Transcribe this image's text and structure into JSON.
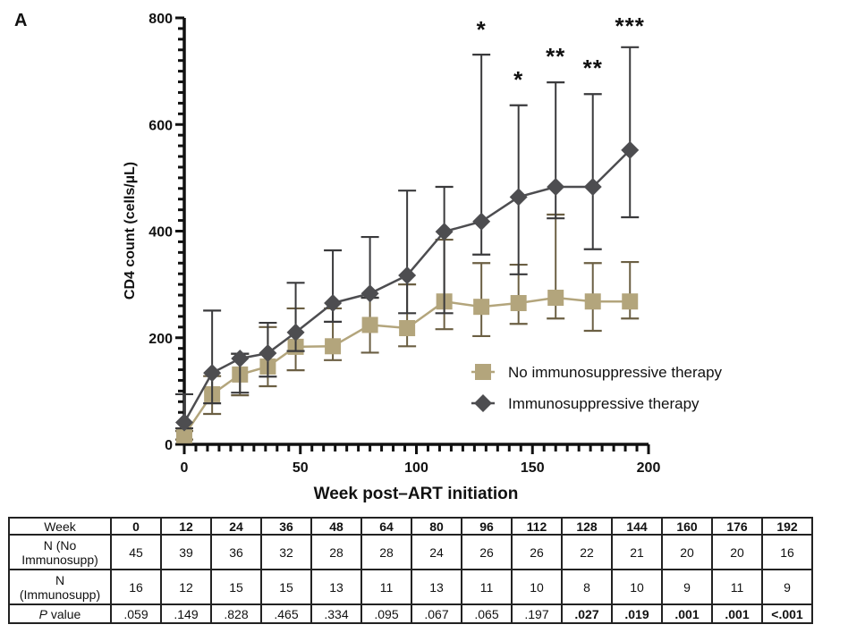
{
  "panel_label": "A",
  "chart_data": {
    "type": "line",
    "title": "",
    "xlabel": "Week post–ART initiation",
    "ylabel": "CD4 count (cells/µL)",
    "xlim": [
      0,
      200
    ],
    "ylim": [
      0,
      800
    ],
    "x_ticks": [
      0,
      50,
      100,
      150,
      200
    ],
    "y_ticks": [
      0,
      200,
      400,
      600,
      800
    ],
    "x_minor_step": 5,
    "y_minor_step": 20,
    "grid": false,
    "legend_position": "lower-right",
    "x": [
      0,
      12,
      24,
      36,
      48,
      64,
      80,
      96,
      112,
      128,
      144,
      160,
      176,
      192
    ],
    "series": [
      {
        "name": "No immunosuppressive therapy",
        "marker": "square",
        "color": "#b3a57c",
        "error_color": "#6b5f43",
        "values": [
          17,
          94,
          131,
          146,
          183,
          184,
          224,
          218,
          268,
          258,
          265,
          275,
          268,
          268
        ],
        "lower": [
          9,
          57,
          92,
          109,
          139,
          158,
          172,
          184,
          216,
          203,
          226,
          236,
          213,
          236
        ],
        "upper": [
          25,
          128,
          170,
          220,
          255,
          255,
          275,
          300,
          384,
          340,
          337,
          431,
          340,
          342
        ]
      },
      {
        "name": "Immunosuppressive therapy",
        "marker": "diamond",
        "color": "#4d4d50",
        "error_color": "#3a3a3c",
        "values": [
          41,
          134,
          161,
          171,
          210,
          265,
          283,
          317,
          399,
          418,
          464,
          483,
          483,
          552
        ],
        "lower": [
          30,
          77,
          97,
          127,
          175,
          230,
          275,
          246,
          246,
          356,
          319,
          424,
          366,
          426
        ],
        "upper": [
          94,
          251,
          170,
          228,
          303,
          364,
          389,
          476,
          483,
          731,
          636,
          679,
          657,
          745
        ]
      }
    ],
    "annotations": [
      {
        "x": 128,
        "text": "*"
      },
      {
        "x": 144,
        "text": "*"
      },
      {
        "x": 160,
        "text": "**"
      },
      {
        "x": 176,
        "text": "**"
      },
      {
        "x": 192,
        "text": "***"
      }
    ]
  },
  "table": {
    "header_label": "Week",
    "weeks": [
      "0",
      "12",
      "24",
      "36",
      "48",
      "64",
      "80",
      "96",
      "112",
      "128",
      "144",
      "160",
      "176",
      "192"
    ],
    "rows": [
      {
        "label_line1": "N (No",
        "label_line2": "Immunosupp)",
        "values": [
          "45",
          "39",
          "36",
          "32",
          "28",
          "28",
          "24",
          "26",
          "26",
          "22",
          "21",
          "20",
          "20",
          "16"
        ]
      },
      {
        "label_line1": "N",
        "label_line2": "(Immunosupp)",
        "values": [
          "16",
          "12",
          "15",
          "15",
          "13",
          "11",
          "13",
          "11",
          "10",
          "8",
          "10",
          "9",
          "11",
          "9"
        ]
      }
    ],
    "pvalue_label_italic": "P",
    "pvalue_label_rest": " value",
    "pvalues": [
      ".059",
      ".149",
      ".828",
      ".465",
      ".334",
      ".095",
      ".067",
      ".065",
      ".197",
      ".027",
      ".019",
      ".001",
      ".001",
      "<.001"
    ],
    "pvalue_significant": [
      false,
      false,
      false,
      false,
      false,
      false,
      false,
      false,
      false,
      true,
      true,
      true,
      true,
      true
    ]
  }
}
